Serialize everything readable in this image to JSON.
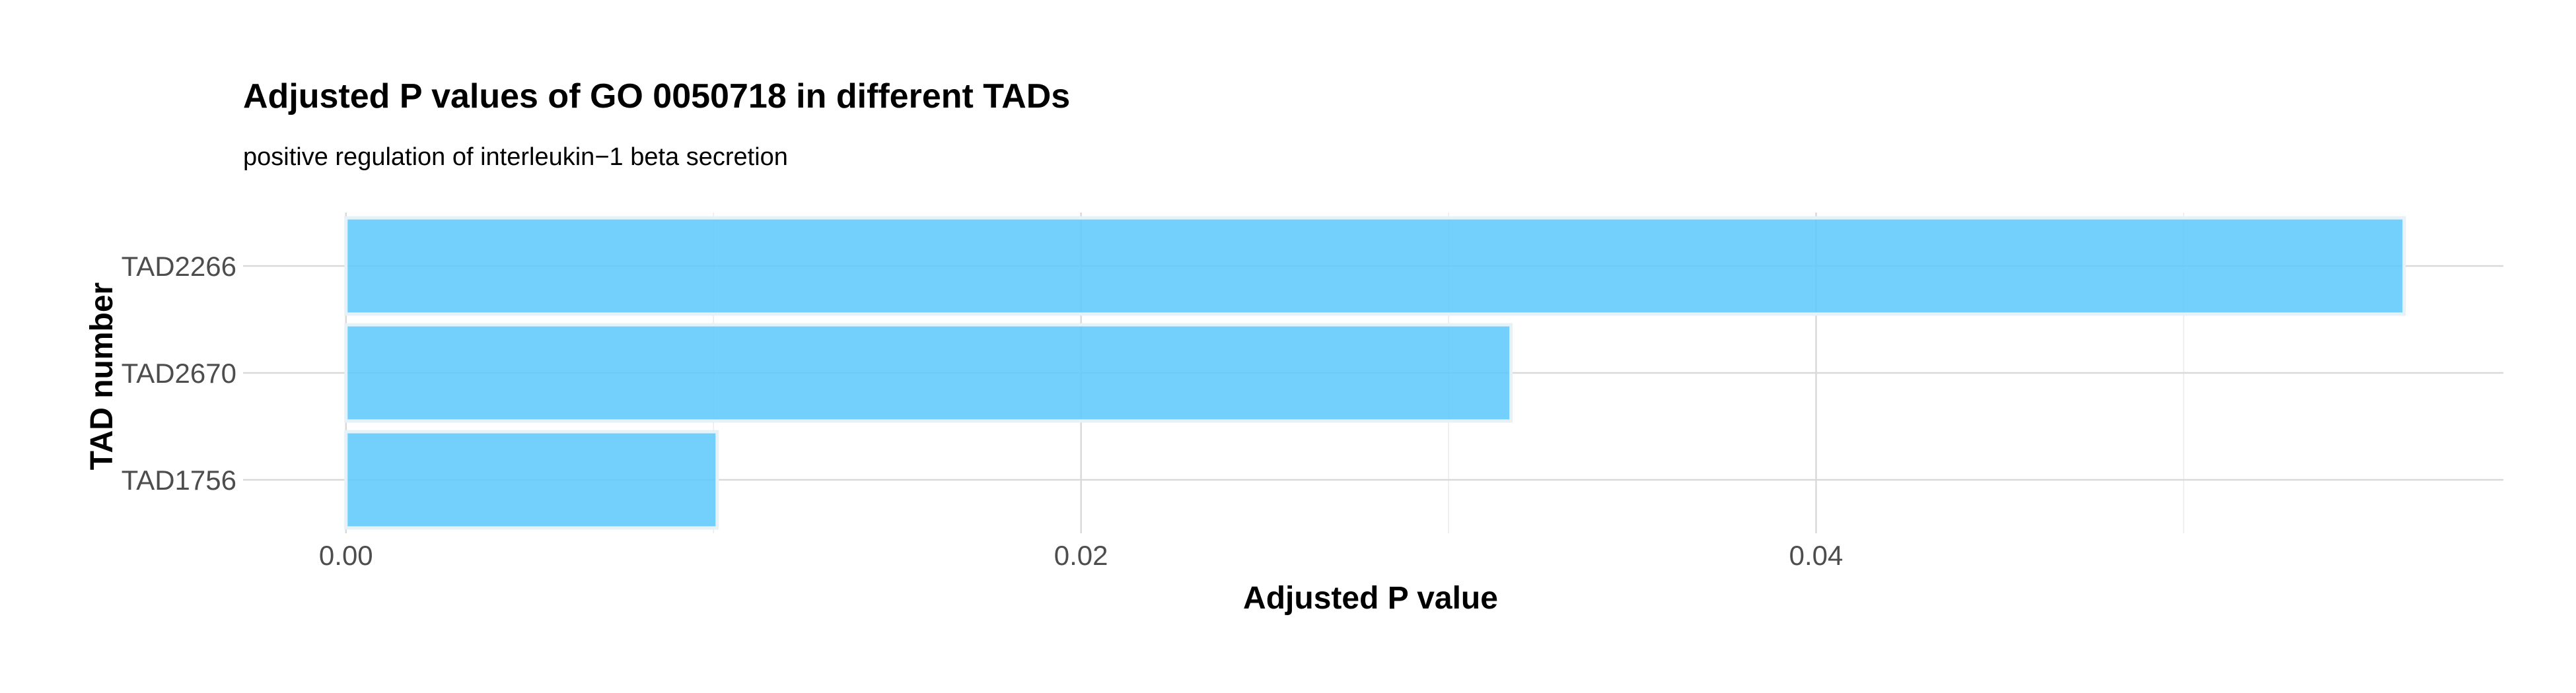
{
  "chart_data": {
    "type": "bar",
    "orientation": "horizontal",
    "title": "Adjusted P values of GO 0050718 in different TADs",
    "subtitle": "positive regulation of interleukin−1 beta secretion",
    "xlabel": "Adjusted P value",
    "ylabel": "TAD number",
    "categories": [
      "TAD2266",
      "TAD2670",
      "TAD1756"
    ],
    "values": [
      0.056,
      0.0317,
      0.0101
    ],
    "xlim": [
      -0.0028,
      0.0587
    ],
    "x_ticks": [
      0.0,
      0.02,
      0.04
    ],
    "x_tick_labels": [
      "0.00",
      "0.02",
      "0.04"
    ],
    "grid": true,
    "legend": "none",
    "colors": {
      "bar_fill": "#5bc8fc",
      "bar_outline": "#e6f1f8",
      "grid": "#d9d9d9"
    }
  }
}
